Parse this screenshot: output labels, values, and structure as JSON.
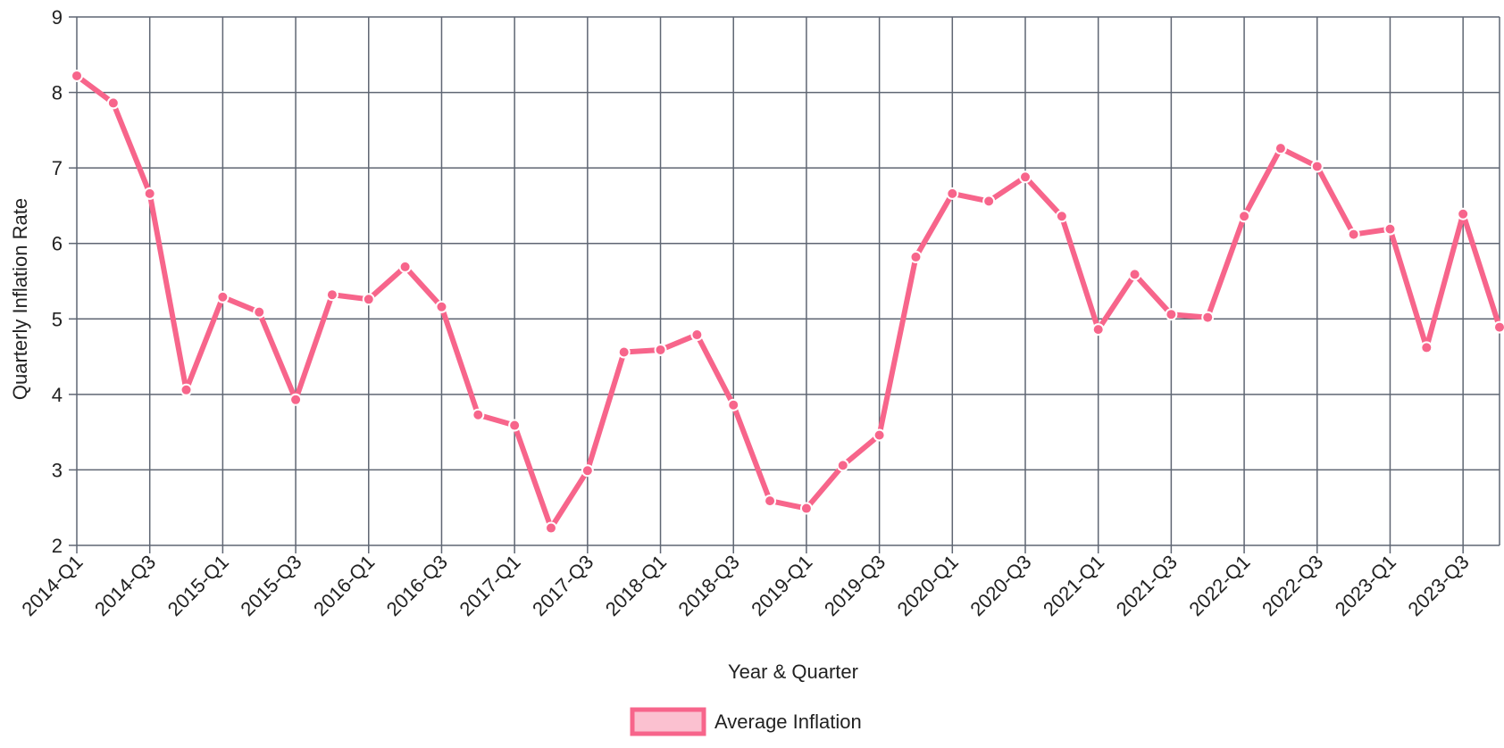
{
  "chart_data": {
    "type": "line",
    "x": [
      "2014-Q1",
      "2014-Q2",
      "2014-Q3",
      "2014-Q4",
      "2015-Q1",
      "2015-Q2",
      "2015-Q3",
      "2015-Q4",
      "2016-Q1",
      "2016-Q2",
      "2016-Q3",
      "2016-Q4",
      "2017-Q1",
      "2017-Q2",
      "2017-Q3",
      "2017-Q4",
      "2018-Q1",
      "2018-Q2",
      "2018-Q3",
      "2018-Q4",
      "2019-Q1",
      "2019-Q2",
      "2019-Q3",
      "2019-Q4",
      "2020-Q1",
      "2020-Q2",
      "2020-Q3",
      "2020-Q4",
      "2021-Q1",
      "2021-Q2",
      "2021-Q3",
      "2021-Q4",
      "2022-Q1",
      "2022-Q2",
      "2022-Q3",
      "2022-Q4",
      "2023-Q1",
      "2023-Q2",
      "2023-Q3",
      "2023-Q4"
    ],
    "x_tick_labels": [
      "2014-Q1",
      "2014-Q3",
      "2015-Q1",
      "2015-Q3",
      "2016-Q1",
      "2016-Q3",
      "2017-Q1",
      "2017-Q3",
      "2018-Q1",
      "2018-Q3",
      "2019-Q1",
      "2019-Q3",
      "2020-Q1",
      "2020-Q3",
      "2021-Q1",
      "2021-Q3",
      "2022-Q1",
      "2022-Q3",
      "2023-Q1",
      "2023-Q3"
    ],
    "series": [
      {
        "name": "Average Inflation",
        "values": [
          8.22,
          7.86,
          6.66,
          4.06,
          5.29,
          5.09,
          3.93,
          5.32,
          5.26,
          5.69,
          5.16,
          3.73,
          3.59,
          2.23,
          2.99,
          4.56,
          4.59,
          4.79,
          3.86,
          2.59,
          2.49,
          3.06,
          3.46,
          5.82,
          6.66,
          6.56,
          6.88,
          6.36,
          4.86,
          5.59,
          5.06,
          5.02,
          6.36,
          7.26,
          7.02,
          6.12,
          6.19,
          4.62,
          6.39,
          4.89
        ],
        "line_color": "#f7658b",
        "fill_color": "#fbc1d0"
      }
    ],
    "ylim": [
      2,
      9
    ],
    "y_ticks": [
      2,
      3,
      4,
      5,
      6,
      7,
      8,
      9
    ],
    "xlabel": "Year & Quarter",
    "ylabel": "Quarterly Inflation Rate",
    "grid": true,
    "grid_color": "#5f6673",
    "legend_position": "bottom-center"
  }
}
